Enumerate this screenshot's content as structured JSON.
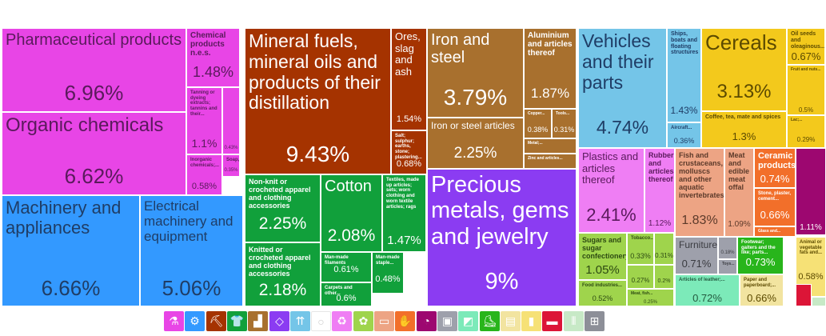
{
  "chart_data": {
    "type": "treemap",
    "value_unit": "%",
    "leaves": [
      {
        "label": "Pharmaceutical products",
        "value": 6.96,
        "value_label": "6.96%",
        "color": "#e845e6"
      },
      {
        "label": "Organic chemicals",
        "value": 6.62,
        "value_label": "6.62%",
        "color": "#e845e6"
      },
      {
        "label": "Chemical products n.e.s.",
        "value": 1.48,
        "value_label": "1.48%",
        "color": "#e845e6"
      },
      {
        "label": "Tanning or dyeing extracts; tannins and their...",
        "value": 1.1,
        "value_label": "1.1%",
        "color": "#e845e6"
      },
      {
        "label": "Inorganic chemicals;...",
        "value": 0.58,
        "value_label": "0.58%",
        "color": "#e845e6"
      },
      {
        "label": "",
        "value": 0.43,
        "value_label": "0.43%",
        "color": "#e845e6"
      },
      {
        "label": "Soap,...",
        "value": 0.35,
        "value_label": "0.35%",
        "color": "#e845e6"
      },
      {
        "label": "Machinery and appliances",
        "value": 6.66,
        "value_label": "6.66%",
        "color": "#3399ff"
      },
      {
        "label": "Electrical machinery and equipment",
        "value": 5.06,
        "value_label": "5.06%",
        "color": "#3399ff"
      },
      {
        "label": "Mineral fuels, mineral oils and products of their distillation",
        "value": 9.43,
        "value_label": "9.43%",
        "color": "#a53300"
      },
      {
        "label": "Ores, slag and ash",
        "value": 1.54,
        "value_label": "1.54%",
        "color": "#a53300"
      },
      {
        "label": "Salt; sulphur; earths, stone; plastering...",
        "value": 0.68,
        "value_label": "0.68%",
        "color": "#a53300"
      },
      {
        "label": "Non-knit or crocheted apparel and clothing accessories",
        "value": 2.25,
        "value_label": "2.25%",
        "color": "#11a03b"
      },
      {
        "label": "Cotton",
        "value": 2.08,
        "value_label": "2.08%",
        "color": "#11a03b"
      },
      {
        "label": "Textiles, made up articles; sets; worn clothing and worn textile articles; rags",
        "value": 1.47,
        "value_label": "1.47%",
        "color": "#11a03b"
      },
      {
        "label": "Knitted or crocheted apparel and clothing accessories",
        "value": 2.18,
        "value_label": "2.18%",
        "color": "#11a03b"
      },
      {
        "label": "Man-made filaments",
        "value": 0.61,
        "value_label": "0.61%",
        "color": "#11a03b"
      },
      {
        "label": "Man-made staple...",
        "value": 0.48,
        "value_label": "0.48%",
        "color": "#11a03b"
      },
      {
        "label": "Carpets and other...",
        "value": 0.6,
        "value_label": "0.6%",
        "color": "#11a03b"
      },
      {
        "label": "Iron and steel",
        "value": 3.79,
        "value_label": "3.79%",
        "color": "#a8702e"
      },
      {
        "label": "Iron or steel articles",
        "value": 2.25,
        "value_label": "2.25%",
        "color": "#a8702e"
      },
      {
        "label": "Aluminium and articles thereof",
        "value": 1.87,
        "value_label": "1.87%",
        "color": "#a8702e"
      },
      {
        "label": "Copper...",
        "value": 0.38,
        "value_label": "0.38%",
        "color": "#a8702e"
      },
      {
        "label": "Tools...",
        "value": 0.31,
        "value_label": "0.31%",
        "color": "#a8702e"
      },
      {
        "label": "Metal;...",
        "value": null,
        "value_label": "",
        "color": "#a8702e"
      },
      {
        "label": "Zinc and articles...",
        "value": null,
        "value_label": "",
        "color": "#a8702e"
      },
      {
        "label": "Precious metals, gems and jewelry",
        "value": 9,
        "value_label": "9%",
        "color": "#8b3cf2"
      },
      {
        "label": "Vehicles and their parts",
        "value": 4.74,
        "value_label": "4.74%",
        "color": "#74c5e8"
      },
      {
        "label": "Ships, boats and floating structures",
        "value": 1.43,
        "value_label": "1.43%",
        "color": "#74c5e8"
      },
      {
        "label": "Aircraft...",
        "value": 0.36,
        "value_label": "0.36%",
        "color": "#74c5e8"
      },
      {
        "label": "Cereals",
        "value": 3.13,
        "value_label": "3.13%",
        "color": "#f3c91c"
      },
      {
        "label": "Oil seeds and oleaginous...",
        "value": 0.67,
        "value_label": "0.67%",
        "color": "#f3c91c"
      },
      {
        "label": "Fruit and nuts...",
        "value": 0.5,
        "value_label": "0.5%",
        "color": "#f3c91c"
      },
      {
        "label": "Coffee, tea, mate and spices",
        "value": 1.3,
        "value_label": "1.3%",
        "color": "#f3c91c"
      },
      {
        "label": "Lac;...",
        "value": 0.29,
        "value_label": "0.29%",
        "color": "#f3c91c"
      },
      {
        "label": "Plastics and articles thereof",
        "value": 2.41,
        "value_label": "2.41%",
        "color": "#ef7ef4"
      },
      {
        "label": "Rubber and articles thereof",
        "value": 1.12,
        "value_label": "1.12%",
        "color": "#ef7ef4"
      },
      {
        "label": "Fish and crustaceans, molluscs and other aquatic invertebrates",
        "value": 1.83,
        "value_label": "1.83%",
        "color": "#eda484"
      },
      {
        "label": "Meat and edible meat offal",
        "value": 1.09,
        "value_label": "1.09%",
        "color": "#eda484"
      },
      {
        "label": "Ceramic products",
        "value": 0.74,
        "value_label": "0.74%",
        "color": "#f26f2a"
      },
      {
        "label": "Stone, plaster, cement...",
        "value": 0.66,
        "value_label": "0.66%",
        "color": "#f26f2a"
      },
      {
        "label": "Glass and...",
        "value": null,
        "value_label": "",
        "color": "#f26f2a"
      },
      {
        "label": "",
        "value": 1.11,
        "value_label": "1.11%",
        "color": "#9d0770"
      },
      {
        "label": "Sugars and sugar confectionery",
        "value": 1.05,
        "value_label": "1.05%",
        "color": "#9fd44c"
      },
      {
        "label": "Tobacco...",
        "value": 0.33,
        "value_label": "0.33%",
        "color": "#9fd44c"
      },
      {
        "label": "",
        "value": 0.31,
        "value_label": "0.31%",
        "color": "#9fd44c"
      },
      {
        "label": "",
        "value": 0.27,
        "value_label": "0.27%",
        "color": "#9fd44c"
      },
      {
        "label": "",
        "value": 0.2,
        "value_label": "0.2%",
        "color": "#9fd44c"
      },
      {
        "label": "Food industries...",
        "value": 0.52,
        "value_label": "0.52%",
        "color": "#9fd44c"
      },
      {
        "label": "Meat, fish...",
        "value": 0.25,
        "value_label": "0.25%",
        "color": "#9fd44c"
      },
      {
        "label": "Furniture",
        "value": 0.71,
        "value_label": "0.71%",
        "color": "#9ea0ab"
      },
      {
        "label": "",
        "value": 0.18,
        "value_label": "0.18%",
        "color": "#9ea0ab"
      },
      {
        "label": "Toys...",
        "value": null,
        "value_label": "",
        "color": "#9ea0ab"
      },
      {
        "label": "Footwear; gaiters and the like; parts...",
        "value": 0.73,
        "value_label": "0.73%",
        "color": "#28b51b"
      },
      {
        "label": "Articles of leather;...",
        "value": 0.72,
        "value_label": "0.72%",
        "color": "#7ceab9"
      },
      {
        "label": "Paper and paperboard;...",
        "value": 0.66,
        "value_label": "0.66%",
        "color": "#f2e4a0"
      },
      {
        "label": "Animal or vegetable fats and...",
        "value": 0.58,
        "value_label": "0.58%",
        "color": "#f6e176"
      },
      {
        "label": "",
        "value": null,
        "value_label": "",
        "color": "#dc1537"
      },
      {
        "label": "",
        "value": null,
        "value_label": "",
        "color": "#c7e9c6"
      }
    ]
  },
  "legend": [
    {
      "icon": "flask-icon",
      "glyph": "⚗",
      "color": "#e845e6"
    },
    {
      "icon": "gear-icon",
      "glyph": "⚙",
      "color": "#3399ff"
    },
    {
      "icon": "pickaxe-icon",
      "glyph": "⛏",
      "color": "#a53300"
    },
    {
      "icon": "shirt-icon",
      "glyph": "👕",
      "color": "#11a03b"
    },
    {
      "icon": "anvil-icon",
      "glyph": "▟",
      "color": "#a8702e"
    },
    {
      "icon": "diamond-icon",
      "glyph": "◇",
      "color": "#8b3cf2"
    },
    {
      "icon": "road-icon",
      "glyph": "⇈",
      "color": "#74c5e8"
    },
    {
      "icon": "egg-icon",
      "glyph": "○",
      "color": "#ffffff"
    },
    {
      "icon": "recycle-icon",
      "glyph": "♻",
      "color": "#ef7ef4"
    },
    {
      "icon": "wheat-icon",
      "glyph": "✿",
      "color": "#9fd44c"
    },
    {
      "icon": "cow-icon",
      "glyph": "▭",
      "color": "#eda484"
    },
    {
      "icon": "hand-icon",
      "glyph": "✋",
      "color": "#f26f2a"
    },
    {
      "icon": "gauge-icon",
      "glyph": "◔",
      "color": "#9d0770"
    },
    {
      "icon": "box-icon",
      "glyph": "▣",
      "color": "#9ea0ab"
    },
    {
      "icon": "leather-icon",
      "glyph": "◩",
      "color": "#7ceab9"
    },
    {
      "icon": "shoe-icon",
      "glyph": "⛸",
      "color": "#28b51b"
    },
    {
      "icon": "scroll-icon",
      "glyph": "▤",
      "color": "#f2e4a0"
    },
    {
      "icon": "bottle-icon",
      "glyph": "▮",
      "color": "#f6e176"
    },
    {
      "icon": "ticket-icon",
      "glyph": "▬",
      "color": "#dc1537"
    },
    {
      "icon": "bottles-icon",
      "glyph": "⫴",
      "color": "#c7e9c6"
    },
    {
      "icon": "easel-icon",
      "glyph": "⊞",
      "color": "#8d8f98"
    }
  ]
}
